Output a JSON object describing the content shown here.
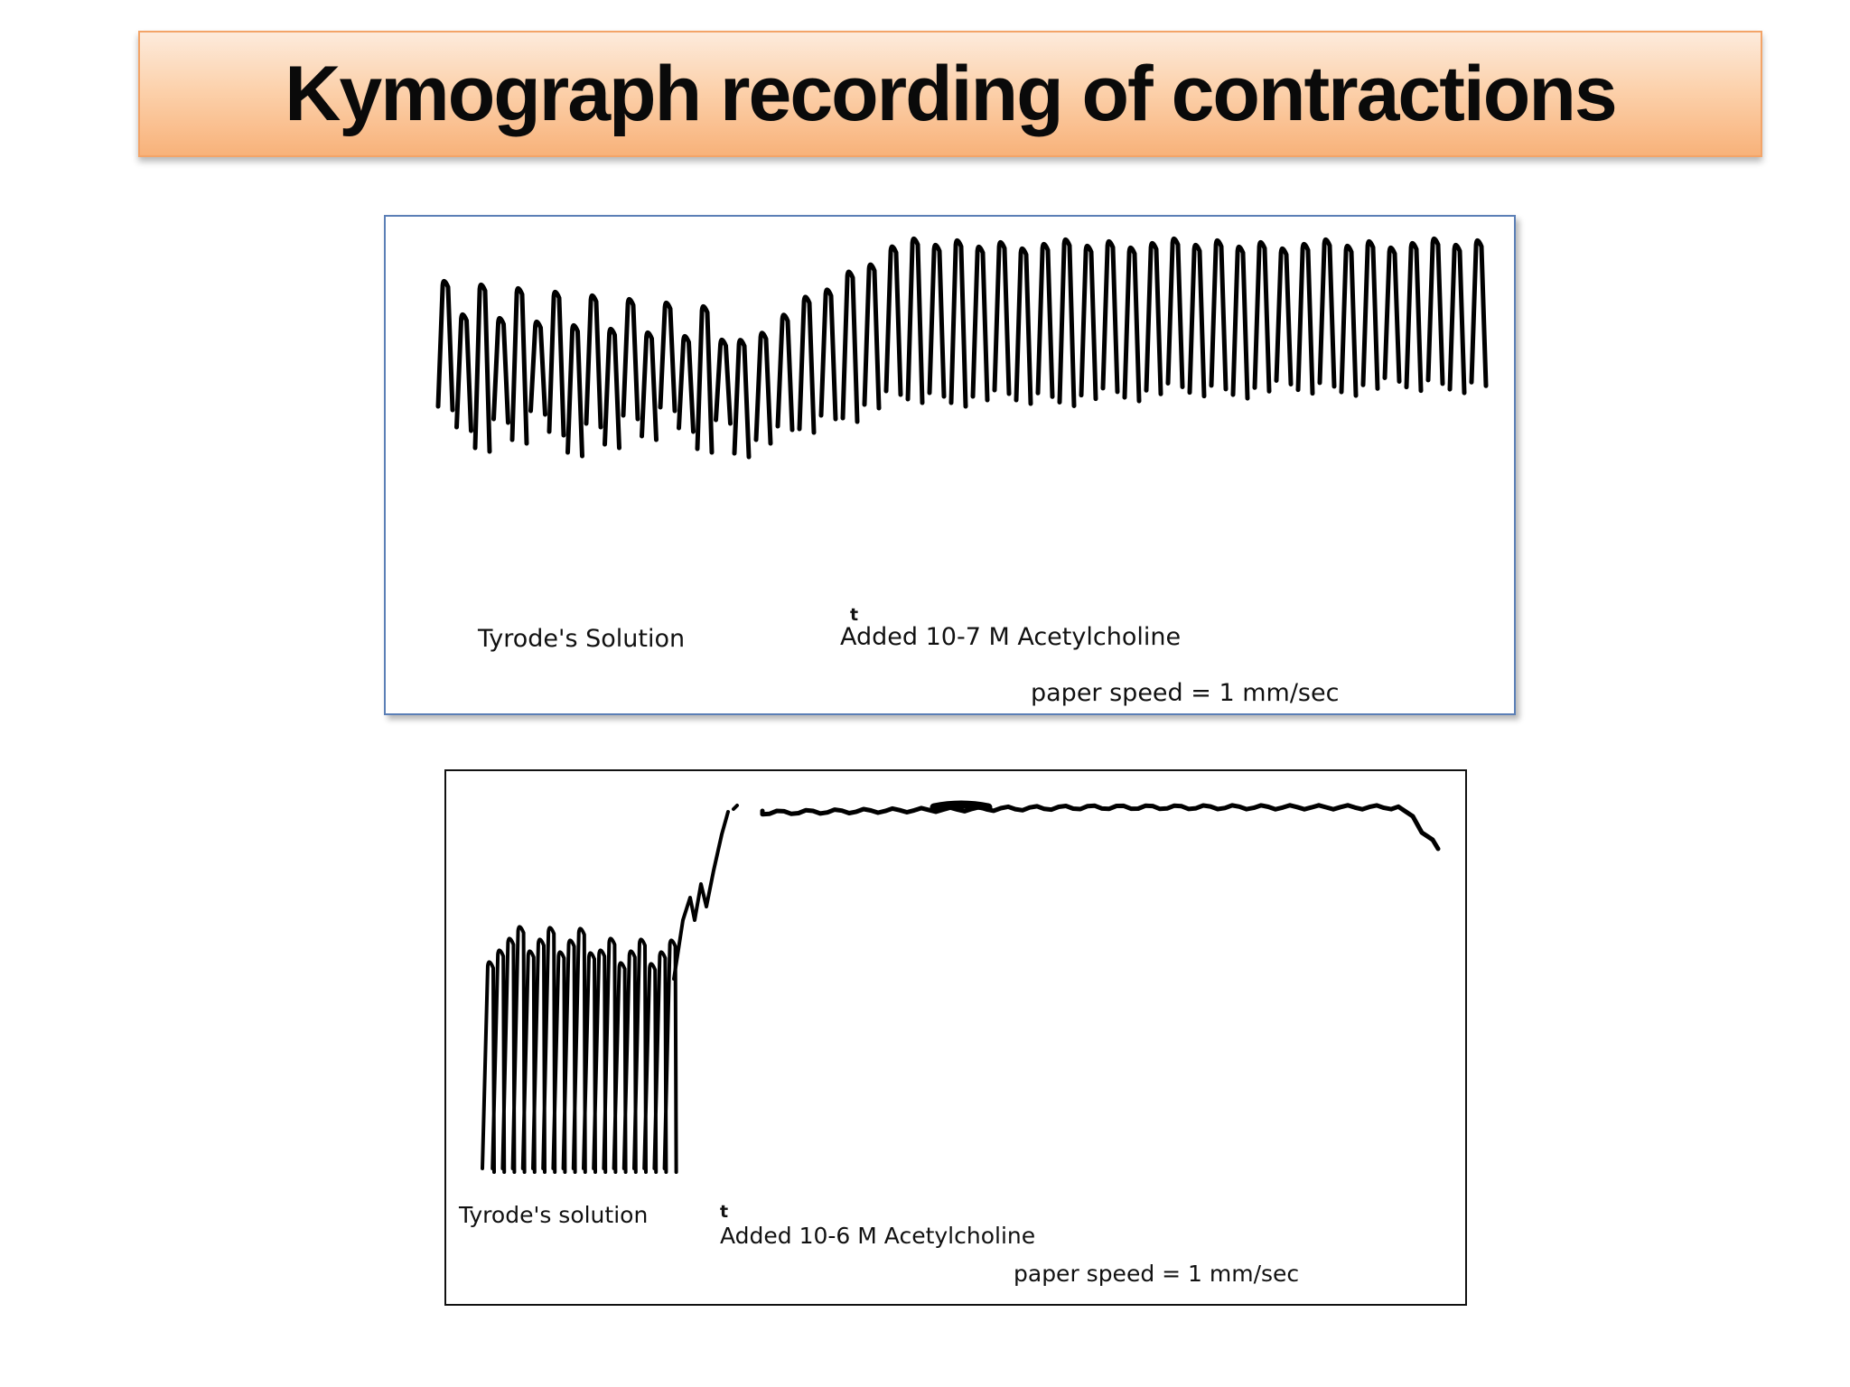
{
  "slide": {
    "title": "Kymograph recording of contractions"
  },
  "recording_1": {
    "baseline_label": "Tyrode's  Solution",
    "marker": "t",
    "added_label": "Added  10-7  M  Acetylcholine",
    "speed_label": "paper  speed  =  1  mm/sec"
  },
  "recording_2": {
    "baseline_label": "Tyrode's   solution",
    "marker": "t",
    "added_label": "Added  10-6  M  Acetylcholine",
    "speed_label": "paper  speed  =  1  mm/sec"
  },
  "colors": {
    "title_gradient_top": "#fdebdc",
    "title_gradient_bottom": "#f8b27a",
    "title_border": "#f3a468",
    "panel1_border": "#5b7fb6",
    "panel2_border": "#111111",
    "trace": "#000000"
  }
}
